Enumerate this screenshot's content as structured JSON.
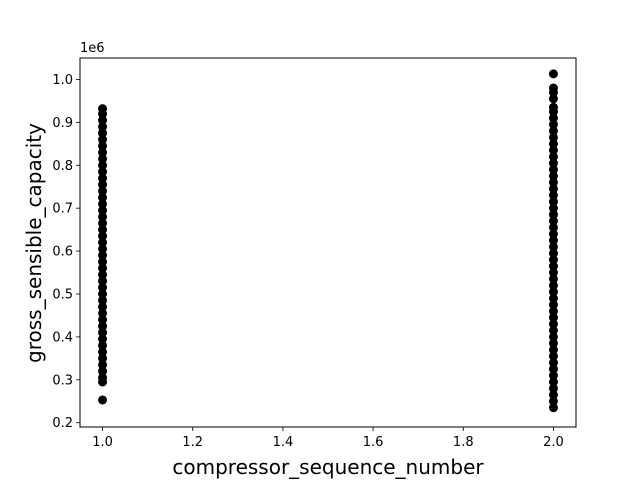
{
  "chart_data": {
    "type": "scatter",
    "xlabel": "compressor_sequence_number",
    "ylabel": "gross_sensible_capacity",
    "y_offset_label": "1e6",
    "xlim": [
      0.95,
      2.05
    ],
    "ylim": [
      0.19,
      1.05
    ],
    "x_ticks": [
      1.0,
      1.2,
      1.4,
      1.6,
      1.8,
      2.0
    ],
    "x_tick_labels": [
      "1.0",
      "1.2",
      "1.4",
      "1.6",
      "1.8",
      "2.0"
    ],
    "y_ticks": [
      0.2,
      0.3,
      0.4,
      0.5,
      0.6,
      0.7,
      0.8,
      0.9,
      1.0
    ],
    "y_tick_labels": [
      "0.2",
      "0.3",
      "0.4",
      "0.5",
      "0.6",
      "0.7",
      "0.8",
      "0.9",
      "1.0"
    ],
    "grid": false,
    "marker_color": "#000000",
    "series": [
      {
        "x_value": 1.0,
        "y_values": [
          0.253,
          0.295,
          0.305,
          0.32,
          0.335,
          0.35,
          0.365,
          0.38,
          0.395,
          0.41,
          0.425,
          0.44,
          0.455,
          0.47,
          0.485,
          0.5,
          0.515,
          0.53,
          0.545,
          0.56,
          0.575,
          0.59,
          0.605,
          0.62,
          0.635,
          0.65,
          0.665,
          0.68,
          0.695,
          0.71,
          0.725,
          0.74,
          0.755,
          0.77,
          0.785,
          0.8,
          0.815,
          0.83,
          0.845,
          0.86,
          0.875,
          0.89,
          0.905,
          0.92,
          0.932
        ]
      },
      {
        "x_value": 2.0,
        "y_values": [
          0.235,
          0.25,
          0.265,
          0.28,
          0.295,
          0.31,
          0.325,
          0.34,
          0.355,
          0.37,
          0.385,
          0.4,
          0.415,
          0.43,
          0.445,
          0.46,
          0.475,
          0.49,
          0.505,
          0.52,
          0.535,
          0.55,
          0.565,
          0.58,
          0.595,
          0.61,
          0.625,
          0.64,
          0.655,
          0.67,
          0.685,
          0.7,
          0.715,
          0.73,
          0.745,
          0.76,
          0.775,
          0.79,
          0.805,
          0.82,
          0.835,
          0.85,
          0.865,
          0.88,
          0.895,
          0.91,
          0.925,
          0.935,
          0.955,
          0.97,
          0.98,
          1.013
        ]
      }
    ]
  }
}
